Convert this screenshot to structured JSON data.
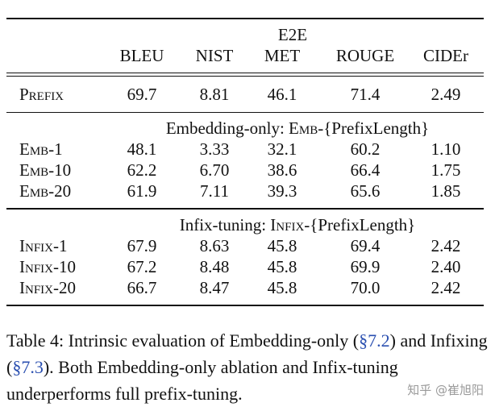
{
  "table": {
    "dataset": "E2E",
    "columns": [
      "BLEU",
      "NIST",
      "MET",
      "ROUGE",
      "CIDEr"
    ],
    "prefix_row": {
      "label": "Prefix",
      "values": [
        "69.7",
        "8.81",
        "46.1",
        "71.4",
        "2.49"
      ]
    },
    "groups": [
      {
        "title_prefix": "Embedding-only: ",
        "title_sc": "Emb",
        "title_suffix": "-{PrefixLength}",
        "rows": [
          {
            "label_sc": "Emb",
            "label_suffix": "-1",
            "values": [
              "48.1",
              "3.33",
              "32.1",
              "60.2",
              "1.10"
            ]
          },
          {
            "label_sc": "Emb",
            "label_suffix": "-10",
            "values": [
              "62.2",
              "6.70",
              "38.6",
              "66.4",
              "1.75"
            ]
          },
          {
            "label_sc": "Emb",
            "label_suffix": "-20",
            "values": [
              "61.9",
              "7.11",
              "39.3",
              "65.6",
              "1.85"
            ]
          }
        ]
      },
      {
        "title_prefix": "Infix-tuning: ",
        "title_sc": "Infix",
        "title_suffix": "-{PrefixLength}",
        "rows": [
          {
            "label_sc": "Infix",
            "label_suffix": "-1",
            "values": [
              "67.9",
              "8.63",
              "45.8",
              "69.4",
              "2.42"
            ]
          },
          {
            "label_sc": "Infix",
            "label_suffix": "-10",
            "values": [
              "67.2",
              "8.48",
              "45.8",
              "69.9",
              "2.40"
            ]
          },
          {
            "label_sc": "Infix",
            "label_suffix": "-20",
            "values": [
              "66.7",
              "8.47",
              "45.8",
              "70.0",
              "2.42"
            ]
          }
        ]
      }
    ]
  },
  "caption": {
    "part1": "Table 4:  Intrinsic evaluation of Embedding-only (",
    "ref1": "§7.2",
    "part2": ") and Infixing (",
    "ref2": "§7.3",
    "part3": ").  Both Embedding-only ablation and Infix-tuning underperforms full prefix-tuning."
  },
  "watermark": "知乎 @崔旭阳"
}
